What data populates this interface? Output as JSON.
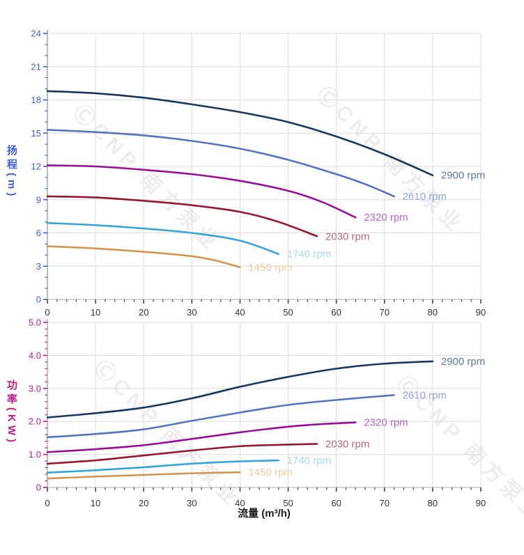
{
  "page": {
    "watermark_text": "ⒸCNP 南方泵业",
    "xlabel": "流量 (m³/h)"
  },
  "chart_data": [
    {
      "id": "head-curve-chart",
      "type": "line",
      "title": "",
      "ylabel": "扬程",
      "ylabel_unit": "(m)",
      "xlabel": "流量 (m³/h)",
      "xlim": [
        0,
        90
      ],
      "ylim": [
        0,
        24
      ],
      "grid": true,
      "legend_position": "inline-at-curve-end",
      "x_major_ticks": [
        0,
        10,
        20,
        30,
        40,
        50,
        60,
        70,
        80,
        90
      ],
      "x_tick_labels": [
        "0",
        "10",
        "20",
        "30",
        "40",
        "50",
        "60",
        "70",
        "80",
        "90"
      ],
      "x_minor_step": 2,
      "y_major_ticks": [
        0,
        3,
        6,
        9,
        12,
        15,
        18,
        21,
        24
      ],
      "y_tick_labels": [
        "0",
        "3",
        "6",
        "9",
        "12",
        "15",
        "18",
        "21",
        "24"
      ],
      "y_minor_step": 1,
      "axis_label_color": "#3f5dd8",
      "y_spine_color": "#96a5cc",
      "x_spine_color": "#c8c8c8",
      "grid_color": "#dcdcdc",
      "series": [
        {
          "name": "2900 rpm",
          "color": "#17375e",
          "label_color": "#5b7b9e",
          "points": [
            [
              0,
              18.8
            ],
            [
              10,
              18.6
            ],
            [
              20,
              18.2
            ],
            [
              30,
              17.6
            ],
            [
              40,
              16.9
            ],
            [
              50,
              16.0
            ],
            [
              60,
              14.7
            ],
            [
              70,
              13.1
            ],
            [
              80,
              11.2
            ]
          ]
        },
        {
          "name": "2610 rpm",
          "color": "#5472c4",
          "label_color": "#93a6d9",
          "points": [
            [
              0,
              15.3
            ],
            [
              10,
              15.1
            ],
            [
              20,
              14.8
            ],
            [
              30,
              14.3
            ],
            [
              40,
              13.6
            ],
            [
              50,
              12.6
            ],
            [
              60,
              11.3
            ],
            [
              66,
              10.4
            ],
            [
              72,
              9.3
            ]
          ]
        },
        {
          "name": "2320 rpm",
          "color": "#990d99",
          "label_color": "#b666c2",
          "points": [
            [
              0,
              12.1
            ],
            [
              10,
              12.0
            ],
            [
              20,
              11.7
            ],
            [
              30,
              11.3
            ],
            [
              40,
              10.7
            ],
            [
              50,
              9.8
            ],
            [
              57,
              8.8
            ],
            [
              64,
              7.4
            ]
          ]
        },
        {
          "name": "2030 rpm",
          "color": "#96172f",
          "label_color": "#b46a76",
          "points": [
            [
              0,
              9.3
            ],
            [
              10,
              9.2
            ],
            [
              20,
              8.9
            ],
            [
              30,
              8.5
            ],
            [
              40,
              7.9
            ],
            [
              48,
              7.0
            ],
            [
              56,
              5.7
            ]
          ]
        },
        {
          "name": "1740 rpm",
          "color": "#35a4dd",
          "label_color": "#a8d7f5",
          "points": [
            [
              0,
              6.9
            ],
            [
              10,
              6.7
            ],
            [
              20,
              6.4
            ],
            [
              30,
              6.0
            ],
            [
              40,
              5.3
            ],
            [
              48,
              4.1
            ]
          ]
        },
        {
          "name": "1450 rpm",
          "color": "#d2974e",
          "label_color": "#eccda0",
          "points": [
            [
              0,
              4.8
            ],
            [
              10,
              4.6
            ],
            [
              20,
              4.3
            ],
            [
              30,
              3.9
            ],
            [
              35,
              3.5
            ],
            [
              40,
              2.9
            ]
          ]
        }
      ]
    },
    {
      "id": "power-curve-chart",
      "type": "line",
      "title": "",
      "ylabel": "功率",
      "ylabel_unit": "(KW)",
      "xlabel": "流量 (m³/h)",
      "xlim": [
        0,
        90
      ],
      "ylim": [
        0,
        5
      ],
      "grid": true,
      "legend_position": "inline-at-curve-end",
      "x_major_ticks": [
        0,
        10,
        20,
        30,
        40,
        50,
        60,
        70,
        80,
        90
      ],
      "x_tick_labels": [
        "0",
        "10",
        "20",
        "30",
        "40",
        "50",
        "60",
        "70",
        "80",
        "90"
      ],
      "x_minor_step": 2,
      "y_major_ticks": [
        0,
        1,
        2,
        3,
        4,
        5
      ],
      "y_tick_labels": [
        "0",
        "1.0",
        "2.0",
        "3.0",
        "4.0",
        "5.0"
      ],
      "y_minor_step": 0.2,
      "axis_label_color": "#c2188c",
      "y_spine_color": "#d09ab8",
      "x_spine_color": "#c8c8c8",
      "grid_color": "#dcdcdc",
      "series": [
        {
          "name": "2900 rpm",
          "color": "#17375e",
          "label_color": "#5b7b9e",
          "points": [
            [
              0,
              2.12
            ],
            [
              10,
              2.25
            ],
            [
              20,
              2.42
            ],
            [
              30,
              2.7
            ],
            [
              40,
              3.05
            ],
            [
              50,
              3.35
            ],
            [
              60,
              3.6
            ],
            [
              70,
              3.75
            ],
            [
              80,
              3.82
            ]
          ]
        },
        {
          "name": "2610 rpm",
          "color": "#5472c4",
          "label_color": "#93a6d9",
          "points": [
            [
              0,
              1.52
            ],
            [
              10,
              1.62
            ],
            [
              20,
              1.76
            ],
            [
              30,
              2.02
            ],
            [
              40,
              2.27
            ],
            [
              50,
              2.5
            ],
            [
              60,
              2.65
            ],
            [
              72,
              2.8
            ]
          ]
        },
        {
          "name": "2320 rpm",
          "color": "#990d99",
          "label_color": "#b666c2",
          "points": [
            [
              0,
              1.07
            ],
            [
              10,
              1.16
            ],
            [
              20,
              1.28
            ],
            [
              30,
              1.47
            ],
            [
              40,
              1.67
            ],
            [
              50,
              1.84
            ],
            [
              57,
              1.92
            ],
            [
              64,
              1.97
            ]
          ]
        },
        {
          "name": "2030 rpm",
          "color": "#96172f",
          "label_color": "#b46a76",
          "points": [
            [
              0,
              0.72
            ],
            [
              10,
              0.82
            ],
            [
              20,
              0.97
            ],
            [
              30,
              1.12
            ],
            [
              40,
              1.25
            ],
            [
              48,
              1.29
            ],
            [
              56,
              1.32
            ]
          ]
        },
        {
          "name": "1740 rpm",
          "color": "#35a4dd",
          "label_color": "#a8d7f5",
          "points": [
            [
              0,
              0.45
            ],
            [
              10,
              0.52
            ],
            [
              20,
              0.61
            ],
            [
              30,
              0.72
            ],
            [
              40,
              0.79
            ],
            [
              48,
              0.82
            ]
          ]
        },
        {
          "name": "1450 rpm",
          "color": "#d2974e",
          "label_color": "#eccda0",
          "points": [
            [
              0,
              0.27
            ],
            [
              10,
              0.33
            ],
            [
              20,
              0.38
            ],
            [
              30,
              0.43
            ],
            [
              40,
              0.46
            ]
          ]
        }
      ]
    }
  ]
}
